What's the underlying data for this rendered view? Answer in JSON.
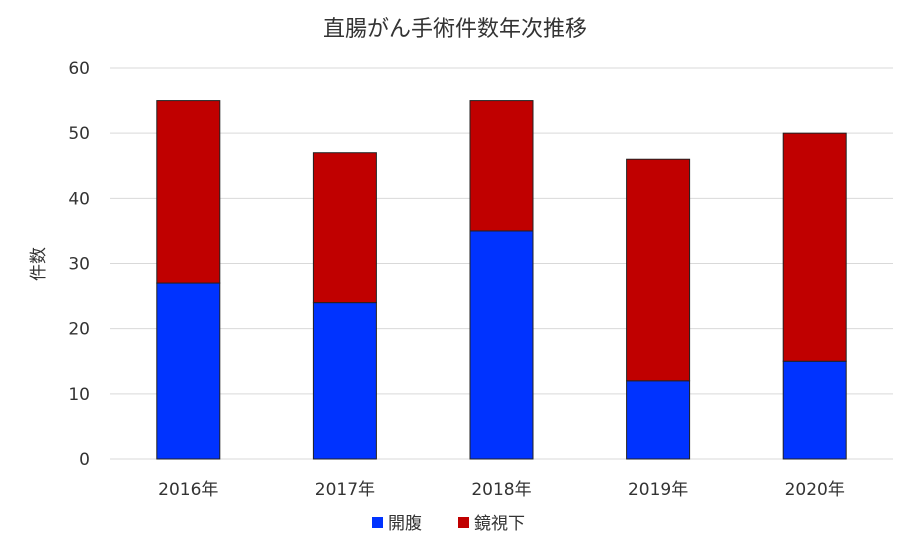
{
  "chart_data": {
    "type": "bar",
    "stacked": true,
    "title": "直腸がん手術件数年次推移",
    "ylabel": "件数",
    "xlabel": "",
    "ylim": [
      0,
      60
    ],
    "yticks": [
      0,
      10,
      20,
      30,
      40,
      50,
      60
    ],
    "grid": true,
    "legend_position": "bottom",
    "categories": [
      "2016年",
      "2017年",
      "2018年",
      "2019年",
      "2020年"
    ],
    "series": [
      {
        "name": "開腹",
        "color": "#0033ff",
        "values": [
          27,
          24,
          35,
          12,
          15
        ]
      },
      {
        "name": "鏡視下",
        "color": "#c00000",
        "values": [
          28,
          23,
          20,
          34,
          35
        ]
      }
    ]
  }
}
